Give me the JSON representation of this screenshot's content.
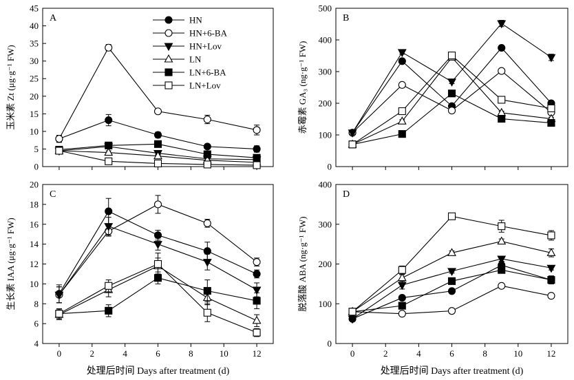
{
  "chart_data": [
    {
      "type": "line",
      "panel": "A",
      "ylabel": "玉米素 Zt (μg·g⁻¹ FW)",
      "x": [
        0,
        3,
        6,
        9,
        12
      ],
      "xticks": [
        "0",
        "2",
        "4",
        "6",
        "8",
        "10",
        "12"
      ],
      "xlim": [
        -1,
        13
      ],
      "ylim": [
        0,
        45
      ],
      "yticks": [
        "0",
        "5",
        "10",
        "15",
        "20",
        "25",
        "30",
        "35",
        "40",
        "45"
      ],
      "series": [
        {
          "name": "HN",
          "values": [
            7.9,
            13.2,
            9.0,
            5.7,
            5.0
          ],
          "errors": [
            1.0,
            1.6,
            0.8,
            0.6,
            0.9
          ]
        },
        {
          "name": "HN+6-BA",
          "values": [
            7.9,
            33.8,
            15.7,
            13.4,
            10.4
          ],
          "errors": [
            1.0,
            0.9,
            0.6,
            1.2,
            1.4
          ]
        },
        {
          "name": "HN+Lov",
          "values": [
            4.5,
            5.7,
            3.8,
            2.2,
            2.0
          ],
          "errors": [
            0.6,
            0.6,
            0.5,
            0.4,
            0.4
          ]
        },
        {
          "name": "LN",
          "values": [
            4.5,
            4.0,
            3.0,
            1.8,
            1.2
          ],
          "errors": [
            0.6,
            0.5,
            0.5,
            0.4,
            0.3
          ]
        },
        {
          "name": "LN+6-BA",
          "values": [
            4.8,
            6.0,
            6.4,
            3.5,
            2.5
          ],
          "errors": [
            0.6,
            0.6,
            0.5,
            0.4,
            0.4
          ]
        },
        {
          "name": "LN+Lov",
          "values": [
            4.5,
            1.5,
            0.9,
            0.6,
            0.4
          ],
          "errors": [
            0.6,
            0.3,
            0.2,
            0.2,
            0.2
          ]
        }
      ]
    },
    {
      "type": "line",
      "panel": "B",
      "ylabel": "赤霉素 GA₃ (ng·g⁻¹ FW)",
      "x": [
        0,
        3,
        6,
        9,
        12
      ],
      "xticks": [
        "0",
        "2",
        "4",
        "6",
        "8",
        "10",
        "12"
      ],
      "xlim": [
        -1,
        13
      ],
      "ylim": [
        0,
        500
      ],
      "yticks": [
        "0",
        "100",
        "200",
        "300",
        "400",
        "500"
      ],
      "series": [
        {
          "name": "HN",
          "values": [
            107,
            333,
            191,
            375,
            200
          ],
          "errors": [
            5,
            6,
            6,
            7,
            6
          ]
        },
        {
          "name": "HN+6-BA",
          "values": [
            107,
            258,
            177,
            302,
            171
          ],
          "errors": [
            5,
            5,
            5,
            6,
            5
          ]
        },
        {
          "name": "HN+Lov",
          "values": [
            107,
            361,
            268,
            452,
            345
          ],
          "errors": [
            5,
            6,
            6,
            10,
            10
          ]
        },
        {
          "name": "LN",
          "values": [
            70,
            143,
            345,
            170,
            151
          ],
          "errors": [
            5,
            5,
            6,
            5,
            5
          ]
        },
        {
          "name": "LN+6-BA",
          "values": [
            70,
            103,
            231,
            151,
            138
          ],
          "errors": [
            5,
            4,
            6,
            5,
            5
          ]
        },
        {
          "name": "LN+Lov",
          "values": [
            70,
            175,
            351,
            211,
            184
          ],
          "errors": [
            5,
            6,
            6,
            5,
            6
          ]
        }
      ]
    },
    {
      "type": "line",
      "panel": "C",
      "ylabel": "生长素 IAA (μg·g⁻¹ FW)",
      "xlabel": "处理后时间 Days after treatment (d)",
      "x": [
        0,
        3,
        6,
        9,
        12
      ],
      "xticks": [
        "0",
        "2",
        "4",
        "6",
        "8",
        "10",
        "12"
      ],
      "xlim": [
        -1,
        13
      ],
      "ylim": [
        4,
        20
      ],
      "yticks": [
        "4",
        "6",
        "8",
        "10",
        "12",
        "14",
        "16",
        "18",
        "20"
      ],
      "series": [
        {
          "name": "HN",
          "values": [
            9.0,
            17.3,
            14.9,
            13.3,
            11.0
          ],
          "errors": [
            0.9,
            1.3,
            0.5,
            0.9,
            0.4
          ]
        },
        {
          "name": "HN+6-BA",
          "values": [
            8.9,
            15.3,
            18.0,
            16.1,
            12.2
          ],
          "errors": [
            0.8,
            0.5,
            0.9,
            0.4,
            0.4
          ]
        },
        {
          "name": "HN+Lov",
          "values": [
            8.9,
            15.8,
            14.0,
            12.2,
            9.4
          ],
          "errors": [
            0.8,
            0.9,
            0.6,
            0.8,
            0.7
          ]
        },
        {
          "name": "LN",
          "values": [
            6.9,
            9.4,
            11.8,
            8.6,
            6.3
          ],
          "errors": [
            0.5,
            0.7,
            0.8,
            0.7,
            0.6
          ]
        },
        {
          "name": "LN+6-BA",
          "values": [
            7.0,
            7.3,
            10.6,
            9.3,
            8.3
          ],
          "errors": [
            0.5,
            0.6,
            0.6,
            1.1,
            0.8
          ]
        },
        {
          "name": "LN+Lov",
          "values": [
            7.0,
            9.8,
            12.0,
            7.1,
            5.1
          ],
          "errors": [
            0.5,
            0.6,
            1.1,
            0.9,
            0.4
          ]
        }
      ]
    },
    {
      "type": "line",
      "panel": "D",
      "ylabel": "脱落酸 ABA (ng·g⁻¹ FW)",
      "xlabel": "处理后时间 Days after treatment (d)",
      "x": [
        0,
        3,
        6,
        9,
        12
      ],
      "xticks": [
        "0",
        "2",
        "4",
        "6",
        "8",
        "10",
        "12"
      ],
      "xlim": [
        -1,
        13
      ],
      "ylim": [
        0,
        400
      ],
      "yticks": [
        "0",
        "100",
        "200",
        "300",
        "400"
      ],
      "series": [
        {
          "name": "HN",
          "values": [
            62,
            115,
            132,
            197,
            160
          ],
          "errors": [
            4,
            5,
            5,
            8,
            10
          ]
        },
        {
          "name": "HN+6-BA",
          "values": [
            80,
            75,
            82,
            145,
            120
          ],
          "errors": [
            4,
            4,
            4,
            5,
            5
          ]
        },
        {
          "name": "HN+Lov",
          "values": [
            62,
            147,
            182,
            213,
            190
          ],
          "errors": [
            4,
            10,
            5,
            6,
            5
          ]
        },
        {
          "name": "LN",
          "values": [
            80,
            165,
            228,
            257,
            228
          ],
          "errors": [
            4,
            8,
            5,
            6,
            10
          ]
        },
        {
          "name": "LN+6-BA",
          "values": [
            80,
            95,
            157,
            185,
            160
          ],
          "errors": [
            4,
            5,
            5,
            8,
            10
          ]
        },
        {
          "name": "LN+Lov",
          "values": [
            80,
            185,
            320,
            295,
            272
          ],
          "errors": [
            4,
            10,
            8,
            15,
            12
          ]
        }
      ]
    }
  ],
  "legend": {
    "placement": "top-left of panel A",
    "entries": [
      {
        "name": "HN",
        "marker": "filled-circle"
      },
      {
        "name": "HN+6-BA",
        "marker": "open-circle"
      },
      {
        "name": "HN+Lov",
        "marker": "filled-triangle-down"
      },
      {
        "name": "LN",
        "marker": "open-triangle-up"
      },
      {
        "name": "LN+6-BA",
        "marker": "filled-square"
      },
      {
        "name": "LN+Lov",
        "marker": "open-square"
      }
    ]
  },
  "colors": {
    "ink": "#000000",
    "background": "#ffffff"
  }
}
